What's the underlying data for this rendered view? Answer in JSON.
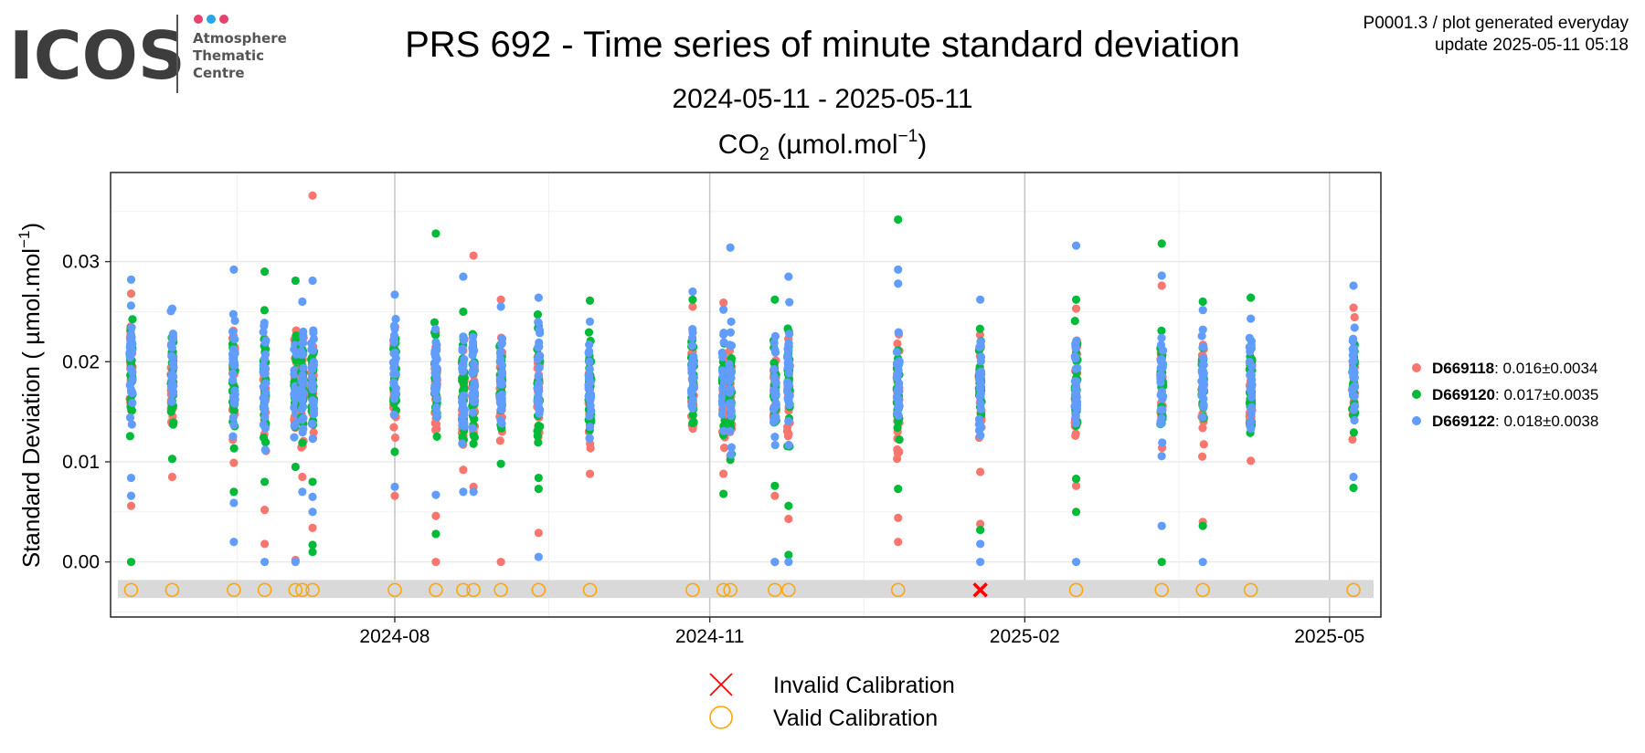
{
  "logo": {
    "word": "ICOS",
    "lines": [
      "Atmosphere",
      "Thematic",
      "Centre"
    ],
    "dot_colors": [
      "#e6436f",
      "#2aa6e5",
      "#e6436f"
    ]
  },
  "meta": {
    "line1": "P0001.3 / plot generated everyday",
    "line2": "update  2025-05-11 05:18"
  },
  "title": "PRS 692 - Time series of minute standard deviation",
  "subtitle": "2024-05-11 - 2025-05-11",
  "chart_data": {
    "type": "scatter",
    "species": {
      "base": "CO",
      "sub": "2",
      "unit_prefix": " (µmol.mol",
      "unit_sup": "−1",
      "unit_suffix": ")"
    },
    "ylabel": {
      "text": "Standard Deviation ( µmol.mol",
      "sup": "−1",
      "tail": ")"
    },
    "xlim": [
      "2024-05-10",
      "2025-05-16"
    ],
    "ylim": [
      -0.0055,
      0.0389
    ],
    "x_ticks": [
      {
        "date": "2024-08-01",
        "label": "2024-08"
      },
      {
        "date": "2024-11-01",
        "label": "2024-11"
      },
      {
        "date": "2025-02-01",
        "label": "2025-02"
      },
      {
        "date": "2025-05-01",
        "label": "2025-05"
      }
    ],
    "x_minor": [
      "2024-06-16",
      "2024-09-15",
      "2024-12-16",
      "2025-03-18"
    ],
    "y_ticks": [
      0.0,
      0.01,
      0.02,
      0.03
    ],
    "y_tick_labels": [
      "0.00",
      "0.01",
      "0.02",
      "0.03"
    ],
    "grid": true,
    "legend_position": "right",
    "series": [
      {
        "name": "D669118",
        "stats": ": 0.016±0.0034",
        "color": "#f8766d"
      },
      {
        "name": "D669120",
        "stats": ": 0.017±0.0035",
        "color": "#00ba38"
      },
      {
        "name": "D669122",
        "stats": ": 0.018±0.0038",
        "color": "#619cff"
      }
    ],
    "calibration_band": [
      -0.0036,
      -0.0018
    ],
    "calibration_y": -0.0028,
    "calibration_legend": {
      "invalid": "Invalid Calibration",
      "valid": "Valid Calibration"
    },
    "valid_calibrations": [
      "2024-05-16",
      "2024-05-28",
      "2024-06-15",
      "2024-06-24",
      "2024-07-03",
      "2024-07-05",
      "2024-07-08",
      "2024-08-01",
      "2024-08-13",
      "2024-08-21",
      "2024-08-24",
      "2024-09-01",
      "2024-09-12",
      "2024-09-27",
      "2024-10-27",
      "2024-11-05",
      "2024-11-07",
      "2024-11-20",
      "2024-11-24",
      "2024-12-26",
      "2025-02-16",
      "2025-03-13",
      "2025-03-25",
      "2025-04-08",
      "2025-05-08"
    ],
    "invalid_calibrations": [
      "2025-01-19"
    ],
    "clusters": [
      {
        "date": "2024-05-16",
        "lo": 0.0105,
        "hi": 0.0282,
        "outliers": {
          "D669118": [
            0.0268,
            0.0056
          ],
          "D669120": [
            0.0
          ],
          "D669122": [
            0.0282,
            0.0084,
            0.0066
          ]
        }
      },
      {
        "date": "2024-05-28",
        "lo": 0.0115,
        "hi": 0.0252,
        "outliers": {
          "D669118": [
            0.0085
          ],
          "D669120": [
            0.0103
          ],
          "D669122": [
            0.0253
          ]
        }
      },
      {
        "date": "2024-06-15",
        "lo": 0.0105,
        "hi": 0.0262,
        "outliers": {
          "D669118": [
            0.0099
          ],
          "D669120": [
            0.007
          ],
          "D669122": [
            0.0292,
            0.0059,
            0.002
          ]
        }
      },
      {
        "date": "2024-06-24",
        "lo": 0.0095,
        "hi": 0.0262,
        "outliers": {
          "D669118": [
            0.0052,
            0.0018
          ],
          "D669120": [
            0.029,
            0.008
          ],
          "D669122": [
            0.0
          ]
        }
      },
      {
        "date": "2024-07-03",
        "lo": 0.0095,
        "hi": 0.0252,
        "outliers": {
          "D669118": [
            0.0002
          ],
          "D669120": [
            0.0281,
            0.0095
          ],
          "D669122": [
            0.0
          ]
        }
      },
      {
        "date": "2024-07-05",
        "lo": 0.0095,
        "hi": 0.0252,
        "outliers": {
          "D669118": [
            0.0085
          ],
          "D669120": [
            0.0119
          ],
          "D669122": [
            0.026,
            0.007
          ]
        }
      },
      {
        "date": "2024-07-08",
        "lo": 0.0105,
        "hi": 0.0252,
        "outliers": {
          "D669118": [
            0.0366,
            0.0034
          ],
          "D669120": [
            0.008,
            0.0017,
            0.001
          ],
          "D669122": [
            0.0281,
            0.0065,
            0.005
          ]
        }
      },
      {
        "date": "2024-08-01",
        "lo": 0.0095,
        "hi": 0.0262,
        "outliers": {
          "D669118": [
            0.0066
          ],
          "D669120": [
            0.011
          ],
          "D669122": [
            0.0267,
            0.0075
          ]
        }
      },
      {
        "date": "2024-08-13",
        "lo": 0.0095,
        "hi": 0.0252,
        "outliers": {
          "D669118": [
            0.0046,
            0.0
          ],
          "D669120": [
            0.0328,
            0.0028
          ],
          "D669122": [
            0.0067
          ]
        }
      },
      {
        "date": "2024-08-21",
        "lo": 0.0085,
        "hi": 0.0252,
        "outliers": {
          "D669118": [
            0.0092
          ],
          "D669120": [
            0.025
          ],
          "D669122": [
            0.0285,
            0.007
          ]
        }
      },
      {
        "date": "2024-08-24",
        "lo": 0.0095,
        "hi": 0.0252,
        "outliers": {
          "D669118": [
            0.0306,
            0.0075
          ],
          "D669120": [
            0.0118
          ],
          "D669122": [
            0.007
          ]
        }
      },
      {
        "date": "2024-09-01",
        "lo": 0.0105,
        "hi": 0.0252,
        "outliers": {
          "D669118": [
            0.0262,
            0.0
          ],
          "D669120": [
            0.0098
          ],
          "D669122": [
            0.0255
          ]
        }
      },
      {
        "date": "2024-09-12",
        "lo": 0.0105,
        "hi": 0.0262,
        "outliers": {
          "D669118": [
            0.0029
          ],
          "D669120": [
            0.0084,
            0.0073
          ],
          "D669122": [
            0.0264,
            0.0005
          ]
        }
      },
      {
        "date": "2024-09-27",
        "lo": 0.0095,
        "hi": 0.0242,
        "outliers": {
          "D669118": [
            0.0088
          ],
          "D669120": [
            0.0261
          ],
          "D669122": [
            0.024
          ]
        }
      },
      {
        "date": "2024-10-27",
        "lo": 0.0095,
        "hi": 0.0262,
        "outliers": {
          "D669118": [
            0.0255
          ],
          "D669120": [
            0.0262
          ],
          "D669122": [
            0.027
          ]
        }
      },
      {
        "date": "2024-11-05",
        "lo": 0.0095,
        "hi": 0.0252,
        "outliers": {
          "D669118": [
            0.0259,
            0.0088
          ],
          "D669120": [
            0.0068
          ],
          "D669122": [
            0.0252
          ]
        }
      },
      {
        "date": "2024-11-07",
        "lo": 0.0095,
        "hi": 0.0252,
        "outliers": {
          "D669118": [
            0.0106
          ],
          "D669120": [
            0.0102
          ],
          "D669122": [
            0.0314
          ]
        }
      },
      {
        "date": "2024-11-20",
        "lo": 0.0095,
        "hi": 0.0252,
        "outliers": {
          "D669118": [
            0.0066,
            0.0
          ],
          "D669120": [
            0.0262,
            0.0076
          ],
          "D669122": [
            0.0
          ]
        }
      },
      {
        "date": "2024-11-24",
        "lo": 0.0095,
        "hi": 0.0262,
        "outliers": {
          "D669118": [
            0.0043
          ],
          "D669120": [
            0.0056,
            0.0007
          ],
          "D669122": [
            0.0285,
            0.0
          ]
        }
      },
      {
        "date": "2024-12-26",
        "lo": 0.0085,
        "hi": 0.0252,
        "outliers": {
          "D669118": [
            0.0044,
            0.002
          ],
          "D669120": [
            0.0342,
            0.0073
          ],
          "D669122": [
            0.0292,
            0.0278
          ]
        }
      },
      {
        "date": "2025-01-19",
        "lo": 0.0095,
        "hi": 0.0252,
        "outliers": {
          "D669118": [
            0.009,
            0.0038
          ],
          "D669120": [
            0.0032
          ],
          "D669122": [
            0.0262,
            0.0018,
            0.0
          ]
        }
      },
      {
        "date": "2025-02-16",
        "lo": 0.0105,
        "hi": 0.0252,
        "outliers": {
          "D669118": [
            0.0253,
            0.0076
          ],
          "D669120": [
            0.0262,
            0.0083,
            0.005
          ],
          "D669122": [
            0.0316,
            0.0
          ]
        }
      },
      {
        "date": "2025-03-13",
        "lo": 0.0095,
        "hi": 0.0252,
        "outliers": {
          "D669118": [
            0.0276
          ],
          "D669120": [
            0.0318,
            0.0
          ],
          "D669122": [
            0.0286,
            0.0036
          ]
        }
      },
      {
        "date": "2025-03-25",
        "lo": 0.0095,
        "hi": 0.0252,
        "outliers": {
          "D669118": [
            0.004
          ],
          "D669120": [
            0.026,
            0.0036
          ],
          "D669122": [
            0.0
          ]
        }
      },
      {
        "date": "2025-04-08",
        "lo": 0.0095,
        "hi": 0.0242,
        "outliers": {
          "D669118": [
            0.0101
          ],
          "D669120": [
            0.0264
          ],
          "D669122": [
            0.0243
          ]
        }
      },
      {
        "date": "2025-05-08",
        "lo": 0.0105,
        "hi": 0.0262,
        "outliers": {
          "D669118": [
            0.0254
          ],
          "D669120": [
            0.0074
          ],
          "D669122": [
            0.0276,
            0.0085
          ]
        }
      }
    ]
  }
}
